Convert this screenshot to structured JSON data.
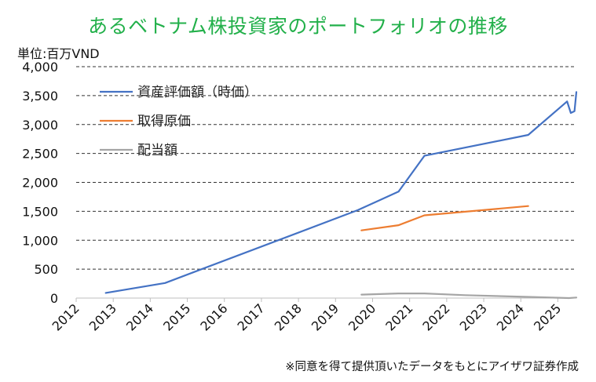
{
  "title": "あるベトナム株投資家のポートフォリオの推移",
  "unit": "単位:百万VND",
  "footnote": "※同意を得て提供頂いたデータをもとにアイザワ証券作成",
  "chart_data": {
    "type": "line",
    "title": "あるベトナム株投資家のポートフォリオの推移",
    "ylabel": "単位:百万VND",
    "xlim": [
      2012,
      2025.5
    ],
    "ylim": [
      0,
      4000
    ],
    "x_ticks": [
      2012,
      2013,
      2014,
      2015,
      2016,
      2017,
      2018,
      2019,
      2020,
      2021,
      2022,
      2023,
      2024,
      2025
    ],
    "y_ticks": [
      0,
      500,
      1000,
      1500,
      2000,
      2500,
      3000,
      3500,
      4000
    ],
    "y_tick_labels": [
      "0",
      "500",
      "1,000",
      "1,500",
      "2,000",
      "2,500",
      "3,000",
      "3,500",
      "4,000"
    ],
    "grid": "horizontal dashed",
    "legend_position": "top-left",
    "series": [
      {
        "name": "資産評価額（時価）",
        "color": "#4472c4",
        "points": [
          [
            2012.8,
            90
          ],
          [
            2014.4,
            260
          ],
          [
            2019.6,
            1520
          ],
          [
            2020.7,
            1840
          ],
          [
            2021.4,
            2460
          ],
          [
            2024.2,
            2820
          ],
          [
            2025.25,
            3400
          ],
          [
            2025.35,
            3200
          ],
          [
            2025.45,
            3230
          ],
          [
            2025.5,
            3560
          ]
        ]
      },
      {
        "name": "取得原価",
        "color": "#ed7d31",
        "points": [
          [
            2019.7,
            1170
          ],
          [
            2020.7,
            1260
          ],
          [
            2021.4,
            1430
          ],
          [
            2024.2,
            1590
          ]
        ]
      },
      {
        "name": "配当額",
        "color": "#a5a5a5",
        "points": [
          [
            2019.7,
            60
          ],
          [
            2020.7,
            80
          ],
          [
            2021.4,
            80
          ],
          [
            2022.5,
            50
          ],
          [
            2024.2,
            20
          ],
          [
            2025.3,
            0
          ],
          [
            2025.5,
            10
          ]
        ]
      }
    ]
  }
}
